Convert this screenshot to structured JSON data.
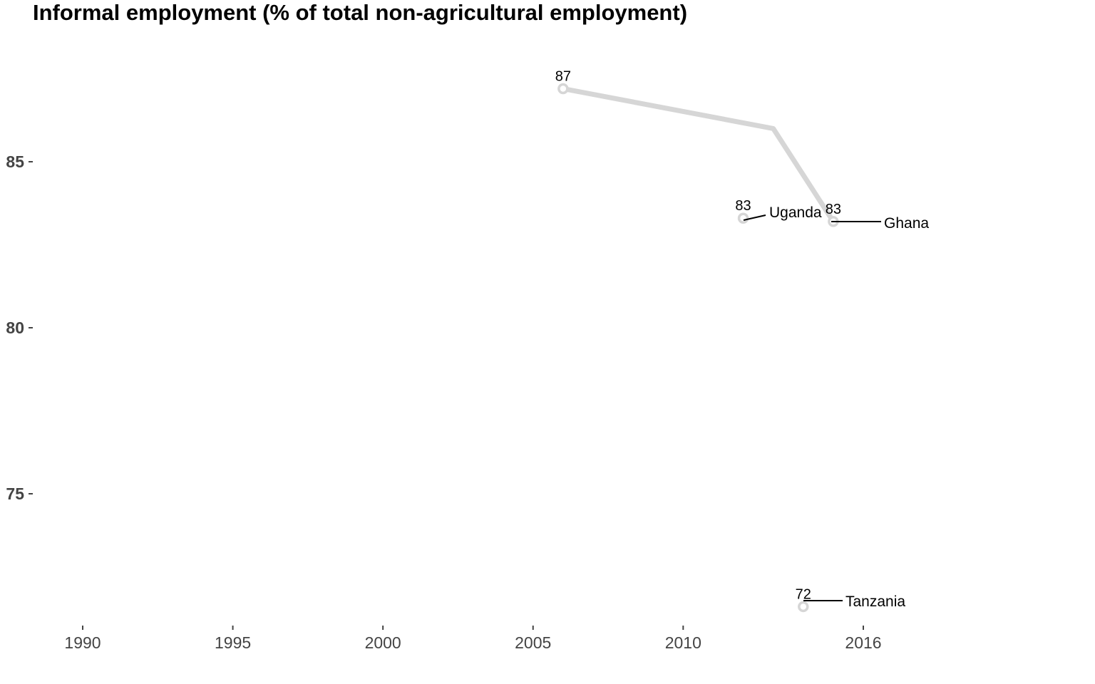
{
  "chart_data": {
    "type": "line",
    "title": "Informal employment (% of total non-agricultural employment)",
    "xlabel": "",
    "ylabel": "",
    "x_ticks": [
      1990,
      1995,
      2000,
      2005,
      2010,
      2016
    ],
    "y_ticks": [
      75,
      80,
      85
    ],
    "xlim": [
      1988.5,
      2023
    ],
    "ylim": [
      71.2,
      88.8
    ],
    "grid": false,
    "line_color": "#d6d6d6",
    "label_color": "#000000",
    "series": [
      {
        "name": "Ghana",
        "points": [
          {
            "x": 2006,
            "y": 87.2
          },
          {
            "x": 2013,
            "y": 86.0
          },
          {
            "x": 2015,
            "y": 83.2
          }
        ],
        "endpoint_labels": [
          "87",
          "",
          "83"
        ],
        "marker_indices": [
          0,
          2
        ]
      },
      {
        "name": "Uganda",
        "points": [
          {
            "x": 2012,
            "y": 83.3
          }
        ],
        "endpoint_labels": [
          "83"
        ],
        "marker_indices": [
          0
        ]
      },
      {
        "name": "Tanzania",
        "points": [
          {
            "x": 2014,
            "y": 71.6
          }
        ],
        "endpoint_labels": [
          "72"
        ],
        "marker_indices": [
          0
        ]
      }
    ]
  }
}
